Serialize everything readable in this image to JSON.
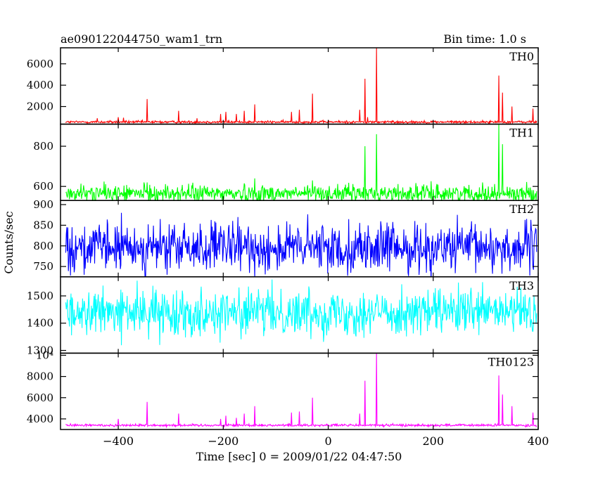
{
  "header": {
    "title": "ae090122044750_wam1_trn",
    "bin_time": "Bin time: 1.0 s"
  },
  "chart_data": {
    "type": "line",
    "title": "ae090122044750_wam1_trn",
    "xlabel": "Time [sec] 0 = 2009/01/22 04:47:50",
    "ylabel": "Counts/sec",
    "xlim": [
      -510,
      400
    ],
    "x_ticks": [
      -400,
      -200,
      0,
      200,
      400
    ],
    "x_tick_labels": [
      "−400",
      "−200",
      "0",
      "200",
      "400"
    ],
    "grid": false,
    "data_range_x": [
      -500,
      397
    ],
    "panels": [
      {
        "name": "TH0",
        "color": "#ff0000",
        "ylim": [
          350,
          7500
        ],
        "yticks": [
          2000,
          4000,
          6000
        ],
        "ytick_labels": [
          "2000",
          "4000",
          "6000"
        ],
        "baseline": 550,
        "noise": 60,
        "spikes": [
          [
            -440,
            900
          ],
          [
            -400,
            1000
          ],
          [
            -390,
            950
          ],
          [
            -345,
            2700
          ],
          [
            -285,
            1600
          ],
          [
            -250,
            900
          ],
          [
            -205,
            1300
          ],
          [
            -195,
            1500
          ],
          [
            -175,
            1300
          ],
          [
            -160,
            1600
          ],
          [
            -140,
            2200
          ],
          [
            -70,
            1500
          ],
          [
            -55,
            1700
          ],
          [
            -30,
            3200
          ],
          [
            60,
            1700
          ],
          [
            70,
            4600
          ],
          [
            75,
            1000
          ],
          [
            92,
            7500
          ],
          [
            325,
            4900
          ],
          [
            332,
            3300
          ],
          [
            350,
            2000
          ],
          [
            390,
            1800
          ]
        ]
      },
      {
        "name": "TH1",
        "color": "#00ff00",
        "ylim": [
          530,
          910
        ],
        "yticks": [
          600,
          800
        ],
        "ytick_labels": [
          "600",
          "800"
        ],
        "baseline": 565,
        "noise": 22,
        "spikes": [
          [
            -345,
            620
          ],
          [
            -140,
            640
          ],
          [
            -30,
            630
          ],
          [
            70,
            800
          ],
          [
            92,
            860
          ],
          [
            325,
            910
          ],
          [
            332,
            810
          ]
        ]
      },
      {
        "name": "TH2",
        "color": "#0000ff",
        "ylim": [
          725,
          910
        ],
        "yticks": [
          750,
          800,
          850,
          900
        ],
        "ytick_labels": [
          "750",
          "800",
          "850",
          "900"
        ],
        "baseline": 795,
        "noise": 30,
        "spikes": []
      },
      {
        "name": "TH3",
        "color": "#00ffff",
        "ylim": [
          1290,
          1570
        ],
        "yticks": [
          1300,
          1400,
          1500
        ],
        "ytick_labels": [
          "1300",
          "1400",
          "1500"
        ],
        "baseline": 1440,
        "noise": 42,
        "spikes": []
      },
      {
        "name": "TH0123",
        "color": "#ff00ff",
        "ylim": [
          3000,
          10200
        ],
        "yticks": [
          4000,
          6000,
          8000,
          10000
        ],
        "ytick_labels": [
          "4000",
          "6000",
          "8000",
          "10⁴"
        ],
        "baseline": 3400,
        "noise": 60,
        "spikes": [
          [
            -400,
            4000
          ],
          [
            -345,
            5600
          ],
          [
            -285,
            4500
          ],
          [
            -205,
            4000
          ],
          [
            -195,
            4300
          ],
          [
            -175,
            4100
          ],
          [
            -160,
            4500
          ],
          [
            -140,
            5200
          ],
          [
            -70,
            4600
          ],
          [
            -55,
            4700
          ],
          [
            -30,
            6000
          ],
          [
            60,
            4500
          ],
          [
            70,
            7600
          ],
          [
            92,
            10200
          ],
          [
            325,
            8100
          ],
          [
            332,
            6300
          ],
          [
            350,
            5200
          ],
          [
            390,
            4600
          ]
        ]
      }
    ]
  }
}
